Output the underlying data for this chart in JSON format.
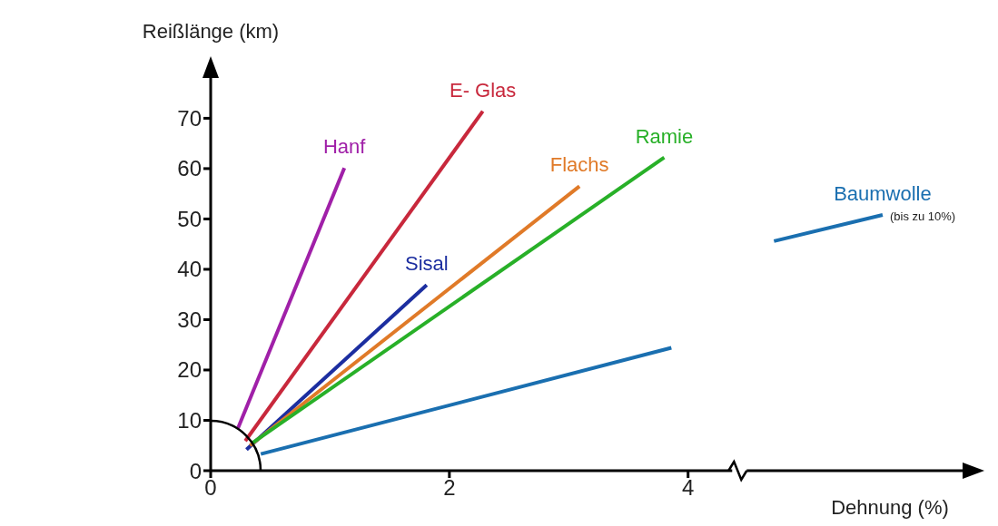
{
  "chart_data": {
    "type": "line",
    "xlabel": "Dehnung (%)",
    "ylabel": "Reißlänge (km)",
    "xlim": [
      0,
      6.3
    ],
    "xticks": [
      0,
      2,
      4
    ],
    "ylim": [
      0,
      78
    ],
    "yticks": [
      0,
      10,
      20,
      30,
      40,
      50,
      60,
      70
    ],
    "grid": false,
    "legend": false,
    "marker": "none",
    "line_style": "solid",
    "series": [
      {
        "name": "Hanf",
        "color": "#a020a8",
        "x": [
          0.23,
          1.12
        ],
        "values": [
          8.5,
          60.1
        ]
      },
      {
        "name": "E- Glas",
        "color": "#c8283c",
        "x": [
          0.29,
          2.28
        ],
        "values": [
          5.9,
          71.4
        ]
      },
      {
        "name": "Sisal",
        "color": "#1c2ea0",
        "x": [
          0.3,
          1.81
        ],
        "values": [
          4.2,
          36.9
        ]
      },
      {
        "name": "Flachs",
        "color": "#e07a28",
        "x": [
          0.33,
          3.09
        ],
        "values": [
          5.0,
          56.5
        ]
      },
      {
        "name": "Ramie",
        "color": "#28b028",
        "x": [
          0.35,
          3.8
        ],
        "values": [
          5.5,
          62.2
        ]
      },
      {
        "name": "Baumwolle",
        "color": "#1a6fb0",
        "x": [
          0.42,
          3.86,
          4.3,
          4.72,
          5.63
        ],
        "values": [
          3.3,
          24.4,
          null,
          45.6,
          50.8
        ]
      }
    ],
    "annotations": [
      {
        "text": "(bis zu 10%)",
        "x": 5.63,
        "y": 50.8
      }
    ]
  }
}
